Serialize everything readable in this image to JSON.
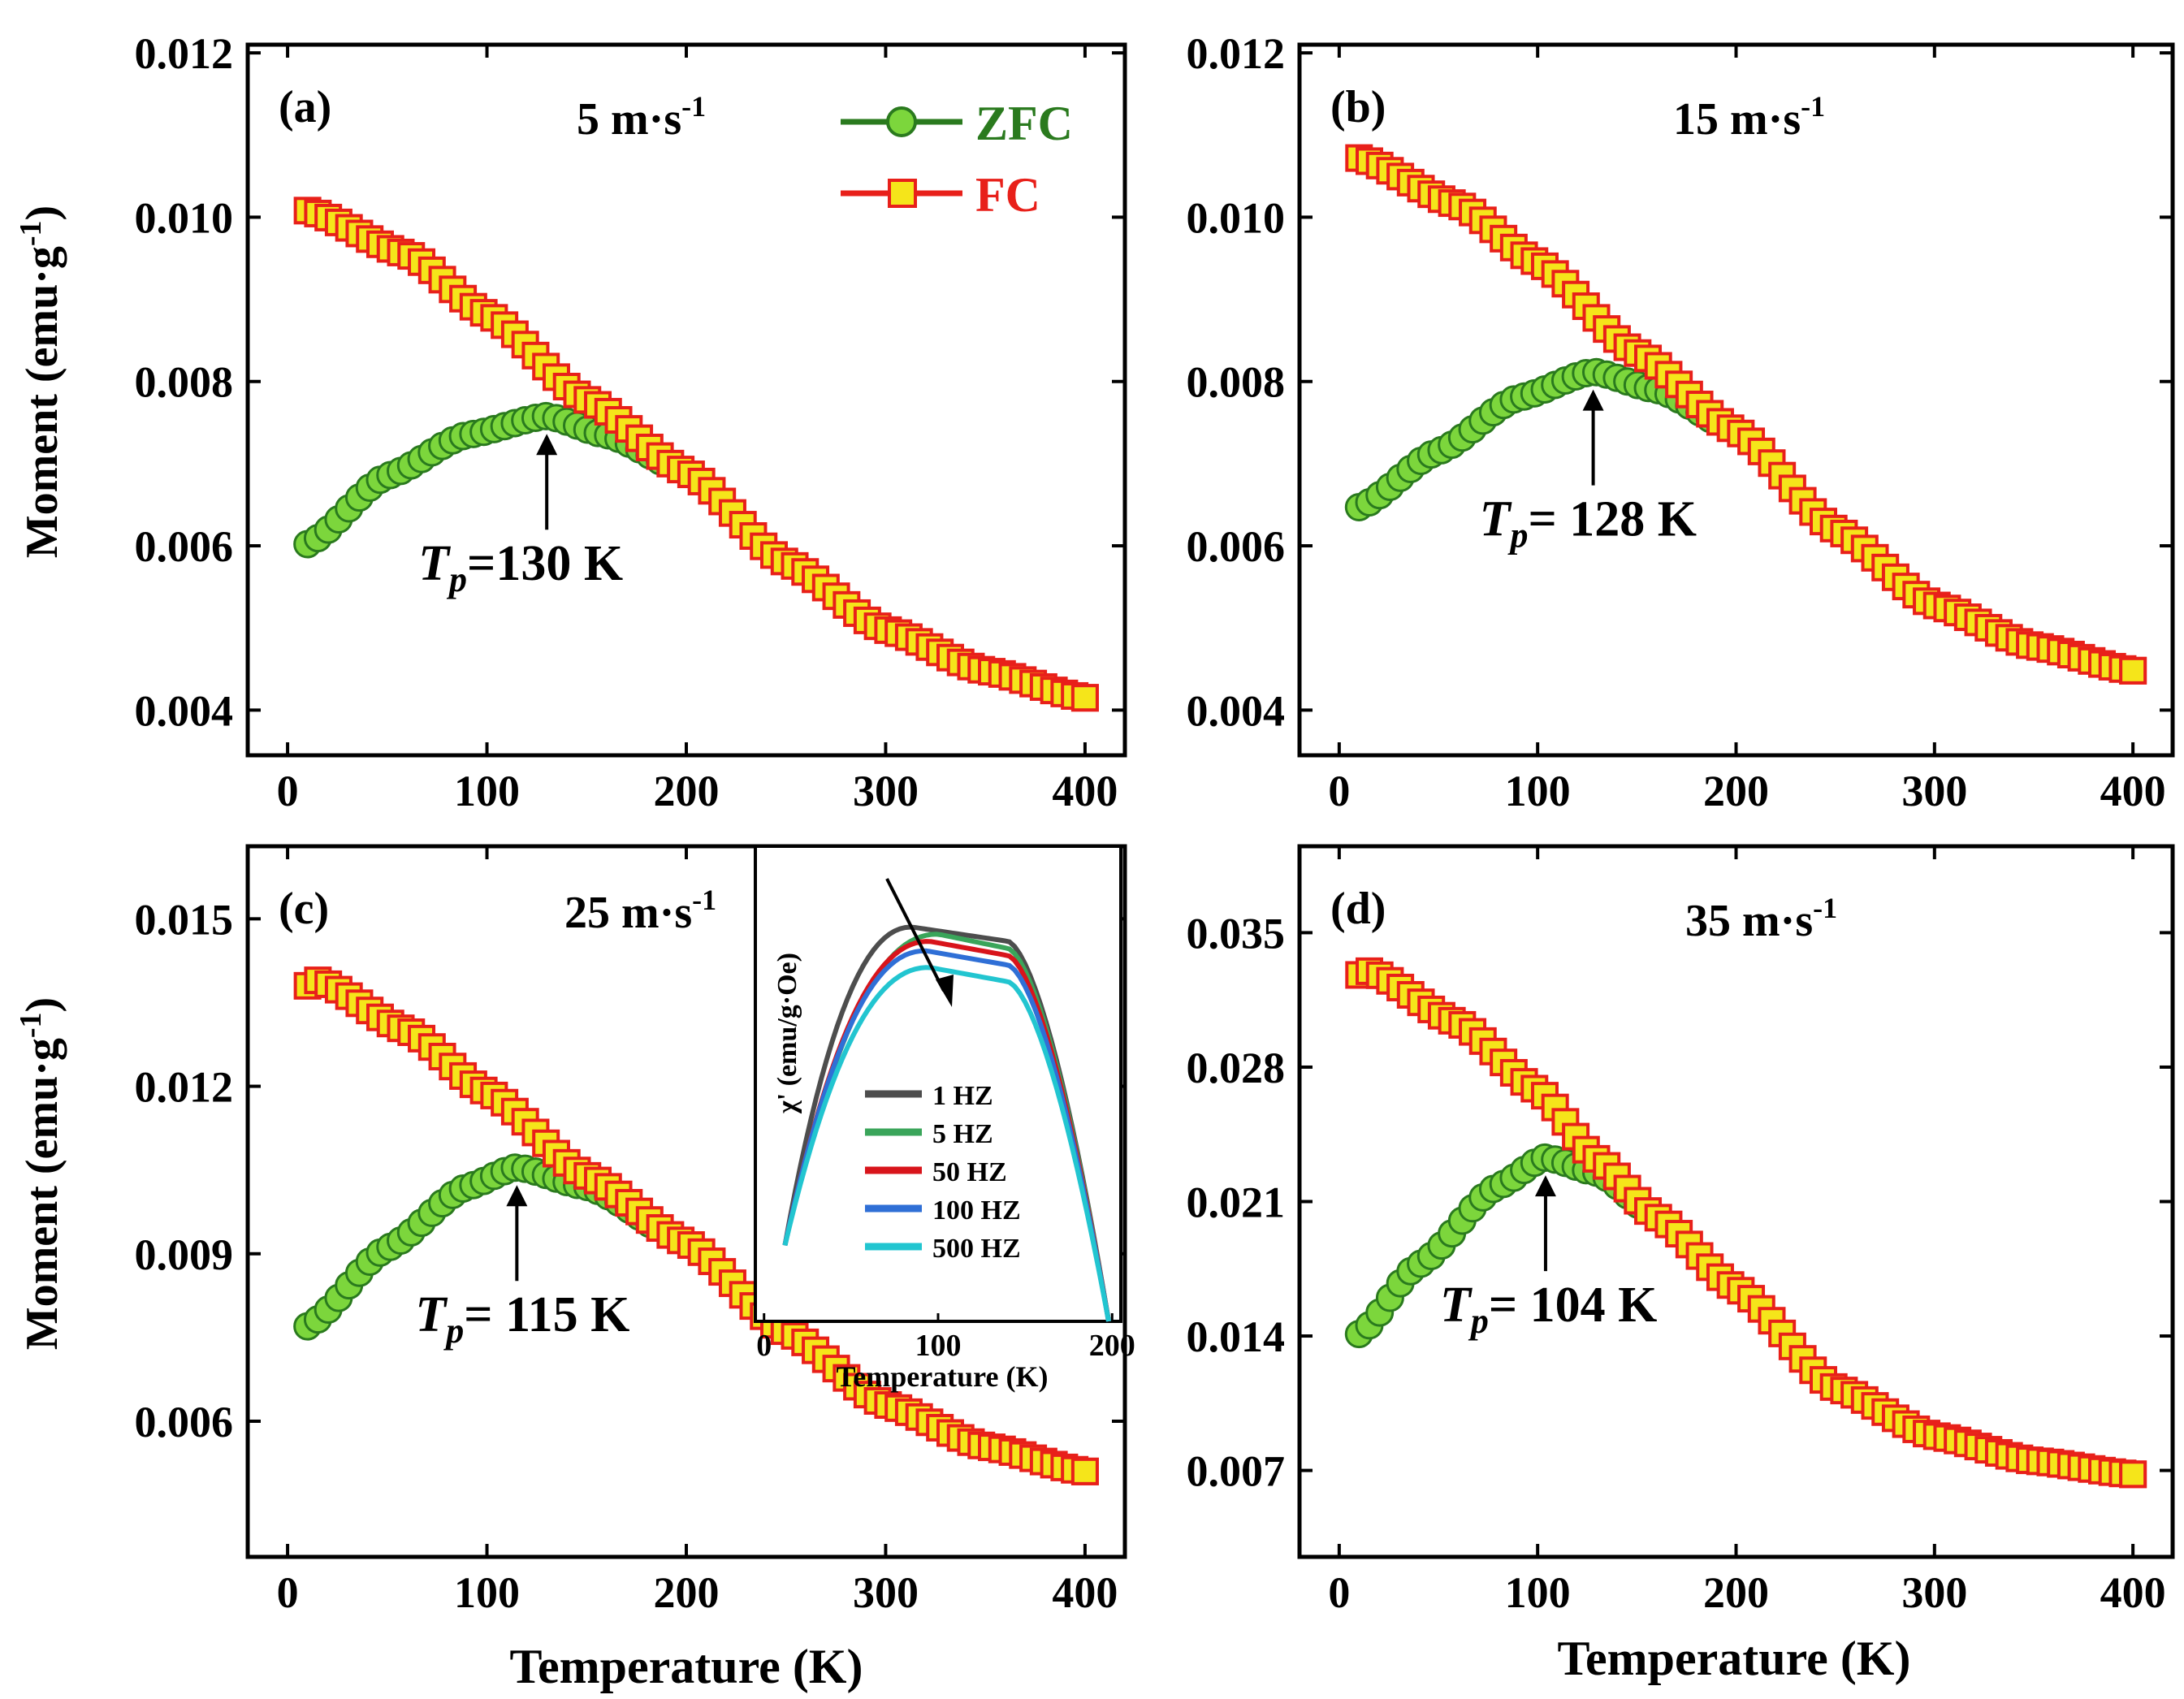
{
  "figure": {
    "y_axis_label_main": "Moment (emu·g",
    "y_axis_label_sup": "-1",
    "y_axis_label_close": ")",
    "x_axis_label": "Temperature (K)"
  },
  "legend": [
    {
      "name": "ZFC",
      "color": "#2a7a1e",
      "marker_fill": "#7cd63c",
      "marker": "circle"
    },
    {
      "name": "FC",
      "color": "#e8201a",
      "marker_fill": "#f5e51a",
      "marker": "square"
    }
  ],
  "chart_data": [
    {
      "type": "scatter",
      "panel": "(a)",
      "speed_label": "5 m·s",
      "speed_sup": "-1",
      "xlim": [
        -20,
        420
      ],
      "ylim": [
        0.00345,
        0.0121
      ],
      "xticks": [
        0,
        100,
        200,
        300,
        400
      ],
      "yticks": [
        0.004,
        0.006,
        0.008,
        0.01,
        0.012
      ],
      "ytick_labels": [
        "0.004",
        "0.006",
        "0.008",
        "0.010",
        "0.012"
      ],
      "xlabel": "",
      "ylabel": "Moment (emu·g-1)",
      "tp_value": 130,
      "tp_text": "=130 K",
      "zfc_knots": [
        [
          10,
          0.00602
        ],
        [
          50,
          0.00685
        ],
        [
          90,
          0.00735
        ],
        [
          130,
          0.00758
        ],
        [
          160,
          0.00735
        ],
        [
          200,
          0.0069
        ],
        [
          250,
          0.0058
        ],
        [
          300,
          0.00498
        ],
        [
          350,
          0.00448
        ],
        [
          400,
          0.00415
        ]
      ],
      "fc_knots": [
        [
          10,
          0.01008
        ],
        [
          60,
          0.00955
        ],
        [
          100,
          0.00882
        ],
        [
          150,
          0.00778
        ],
        [
          200,
          0.0069
        ],
        [
          250,
          0.0058
        ],
        [
          300,
          0.00498
        ],
        [
          350,
          0.00448
        ],
        [
          400,
          0.00415
        ]
      ]
    },
    {
      "type": "scatter",
      "panel": "(b)",
      "speed_label": "15 m·s",
      "speed_sup": "-1",
      "xlim": [
        -20,
        420
      ],
      "ylim": [
        0.00345,
        0.0121
      ],
      "xticks": [
        0,
        100,
        200,
        300,
        400
      ],
      "yticks": [
        0.004,
        0.006,
        0.008,
        0.01,
        0.012
      ],
      "ytick_labels": [
        "0.004",
        "0.006",
        "0.008",
        "0.010",
        "0.012"
      ],
      "xlabel": "",
      "ylabel": "",
      "tp_value": 128,
      "tp_text": "= 128 K",
      "zfc_knots": [
        [
          10,
          0.00647
        ],
        [
          50,
          0.00715
        ],
        [
          90,
          0.0078
        ],
        [
          128,
          0.00812
        ],
        [
          160,
          0.0079
        ],
        [
          200,
          0.0074
        ],
        [
          250,
          0.0062
        ],
        [
          300,
          0.00528
        ],
        [
          350,
          0.00478
        ],
        [
          400,
          0.00448
        ]
      ],
      "fc_knots": [
        [
          10,
          0.01072
        ],
        [
          60,
          0.01015
        ],
        [
          100,
          0.00945
        ],
        [
          150,
          0.00835
        ],
        [
          200,
          0.0074
        ],
        [
          250,
          0.0062
        ],
        [
          300,
          0.00528
        ],
        [
          350,
          0.00478
        ],
        [
          400,
          0.00448
        ]
      ]
    },
    {
      "type": "scatter",
      "panel": "(c)",
      "speed_label": "25 m·s",
      "speed_sup": "-1",
      "xlim": [
        -20,
        420
      ],
      "ylim": [
        0.00357,
        0.0163
      ],
      "xticks": [
        0,
        100,
        200,
        300,
        400
      ],
      "yticks": [
        0.006,
        0.009,
        0.012,
        0.015
      ],
      "ytick_labels": [
        "0.006",
        "0.009",
        "0.012",
        "0.015"
      ],
      "xlabel": "Temperature (K)",
      "ylabel": "Moment (emu·g-1)",
      "tp_value": 115,
      "tp_text": "= 115 K",
      "zfc_knots": [
        [
          10,
          0.0077
        ],
        [
          50,
          0.0091
        ],
        [
          90,
          0.0102
        ],
        [
          115,
          0.01055
        ],
        [
          150,
          0.0102
        ],
        [
          200,
          0.0092
        ],
        [
          250,
          0.0076
        ],
        [
          300,
          0.0063
        ],
        [
          350,
          0.00555
        ],
        [
          400,
          0.0051
        ]
      ],
      "fc_knots": [
        [
          10,
          0.0138
        ],
        [
          15,
          0.0139
        ],
        [
          60,
          0.013
        ],
        [
          100,
          0.0119
        ],
        [
          150,
          0.0104
        ],
        [
          200,
          0.0092
        ],
        [
          250,
          0.0076
        ],
        [
          300,
          0.0063
        ],
        [
          350,
          0.00555
        ],
        [
          400,
          0.0051
        ]
      ],
      "inset": {
        "type": "line",
        "xlabel": "Temperature (K)",
        "ylabel": "χ' (emu/g·Oe)",
        "xlim": [
          -5,
          205
        ],
        "ylim": [
          0,
          1
        ],
        "xticks": [
          0,
          100,
          200
        ],
        "series": [
          {
            "name": "1 HZ",
            "color": "#4d4d4d",
            "peak": 0.83,
            "peak_x": 85
          },
          {
            "name": "5 HZ",
            "color": "#3aa55a",
            "peak": 0.815,
            "peak_x": 100
          },
          {
            "name": "50 HZ",
            "color": "#d8141b",
            "peak": 0.8,
            "peak_x": 95
          },
          {
            "name": "100 HZ",
            "color": "#2f6fd6",
            "peak": 0.78,
            "peak_x": 93
          },
          {
            "name": "500 HZ",
            "color": "#22c5d0",
            "peak": 0.745,
            "peak_x": 95
          }
        ]
      }
    },
    {
      "type": "scatter",
      "panel": "(d)",
      "speed_label": "35 m·s",
      "speed_sup": "-1",
      "xlim": [
        -20,
        420
      ],
      "ylim": [
        0.0025,
        0.0395
      ],
      "xticks": [
        0,
        100,
        200,
        300,
        400
      ],
      "yticks": [
        0.007,
        0.014,
        0.021,
        0.028,
        0.035
      ],
      "ytick_labels": [
        "0.007",
        "0.014",
        "0.021",
        "0.028",
        "0.035"
      ],
      "xlabel": "Temperature (K)",
      "ylabel": "",
      "tp_value": 104,
      "tp_text": "= 104 K",
      "zfc_knots": [
        [
          10,
          0.0141
        ],
        [
          40,
          0.0177
        ],
        [
          80,
          0.0218
        ],
        [
          104,
          0.0233
        ],
        [
          130,
          0.0225
        ],
        [
          160,
          0.0202
        ],
        [
          200,
          0.0165
        ],
        [
          250,
          0.0113
        ],
        [
          300,
          0.0088
        ],
        [
          350,
          0.0075
        ],
        [
          400,
          0.0068
        ]
      ],
      "fc_knots": [
        [
          10,
          0.0328
        ],
        [
          15,
          0.033
        ],
        [
          60,
          0.0303
        ],
        [
          100,
          0.0268
        ],
        [
          130,
          0.0232
        ],
        [
          160,
          0.0202
        ],
        [
          200,
          0.0165
        ],
        [
          250,
          0.0113
        ],
        [
          300,
          0.0088
        ],
        [
          350,
          0.0075
        ],
        [
          400,
          0.0068
        ]
      ]
    }
  ]
}
